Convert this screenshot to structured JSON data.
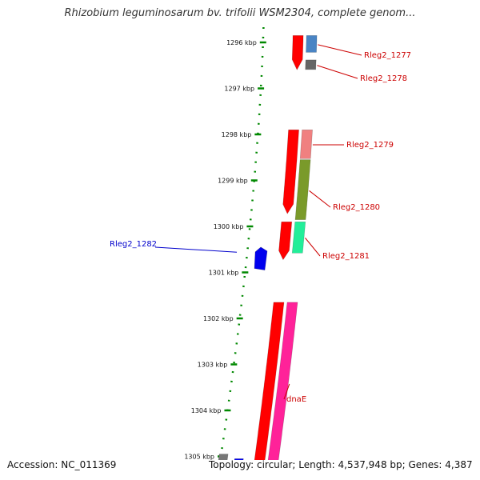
{
  "title": "Rhizobium leguminosarum bv. trifolii WSM2304, complete genom...",
  "footer": {
    "accession": "Accession: NC_011369",
    "topology": "Topology: circular; Length: 4,537,948 bp; Genes: 4,387"
  },
  "ruler": {
    "unit": "kbp",
    "ticks": [
      {
        "kbp": 1296,
        "label": "1296 kbp"
      },
      {
        "kbp": 1297,
        "label": "1297 kbp"
      },
      {
        "kbp": 1298,
        "label": "1298 kbp"
      },
      {
        "kbp": 1299,
        "label": "1299 kbp"
      },
      {
        "kbp": 1300,
        "label": "1300 kbp"
      },
      {
        "kbp": 1301,
        "label": "1301 kbp"
      },
      {
        "kbp": 1302,
        "label": "1302 kbp"
      },
      {
        "kbp": 1303,
        "label": "1303 kbp"
      },
      {
        "kbp": 1304,
        "label": "1304 kbp"
      },
      {
        "kbp": 1305,
        "label": "1305 kbp"
      }
    ]
  },
  "genes": [
    {
      "name": "Rleg2_1277",
      "strand": "+",
      "start_kbp": 1295.85,
      "end_kbp": 1296.25,
      "color": "#4a84c4",
      "label": "Rleg2_1277"
    },
    {
      "name": "Rleg2_1278",
      "strand": "+",
      "start_kbp": 1296.38,
      "end_kbp": 1296.62,
      "color": "#666666",
      "label": "Rleg2_1278"
    },
    {
      "name": "Rleg2_1279",
      "strand": "+",
      "start_kbp": 1297.9,
      "end_kbp": 1298.55,
      "color": "#f08080",
      "label": "Rleg2_1279"
    },
    {
      "name": "Rleg2_1280",
      "strand": "+",
      "start_kbp": 1298.55,
      "end_kbp": 1299.9,
      "color": "#7a9a2a",
      "label": "Rleg2_1280"
    },
    {
      "name": "Rleg2_1281",
      "strand": "+",
      "start_kbp": 1299.9,
      "end_kbp": 1300.6,
      "color": "#22ee99",
      "label": "Rleg2_1281"
    },
    {
      "name": "Rleg2_1282",
      "strand": "-",
      "start_kbp": 1300.45,
      "end_kbp": 1300.95,
      "color": "#0000ee",
      "label": "Rleg2_1282"
    },
    {
      "name": "dnaE",
      "strand": "+",
      "start_kbp": 1301.65,
      "end_kbp": 1305.2,
      "color": "#ff2299",
      "label": "dnaE"
    }
  ],
  "colors": {
    "cds": "#ff0000",
    "ruler": "#008800",
    "backbone": "#808080",
    "label_plus": "#cc0000",
    "label_minus": "#0000cc"
  }
}
